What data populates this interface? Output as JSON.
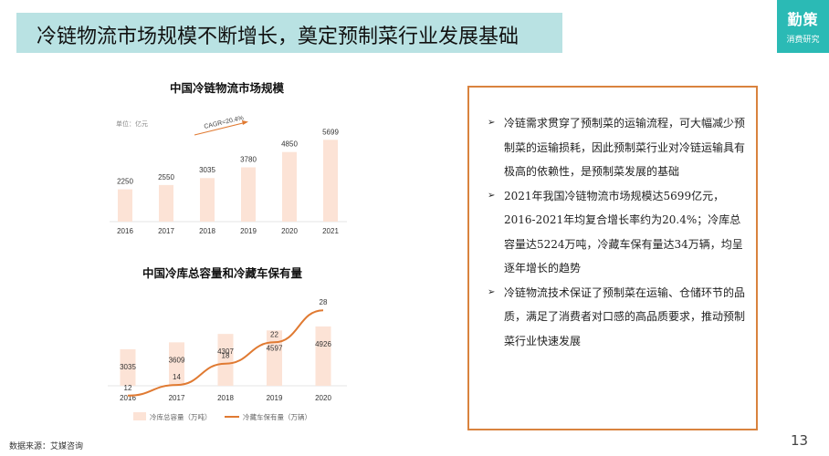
{
  "header": {
    "title": "冷链物流市场规模不断增长，奠定预制菜行业发展基础"
  },
  "brand": {
    "name": "勤策",
    "subtitle": "消费研究"
  },
  "chart_data": [
    {
      "type": "bar",
      "title": "中国冷链物流市场规模",
      "unit_label": "单位：亿元",
      "annotation": "CAGR=20.4%",
      "categories": [
        "2016",
        "2017",
        "2018",
        "2019",
        "2020",
        "2021"
      ],
      "values": [
        2250,
        2550,
        3035,
        3780,
        4850,
        5699
      ],
      "bar_color": "#fce3d6"
    },
    {
      "type": "bar+line",
      "title": "中国冷库总容量和冷藏车保有量",
      "categories": [
        "2016",
        "2017",
        "2018",
        "2019",
        "2020"
      ],
      "series": [
        {
          "name": "冷库总容量（万吨）",
          "type": "bar",
          "values": [
            3035,
            3609,
            4307,
            4597,
            4926
          ],
          "color": "#fce3d6"
        },
        {
          "name": "冷藏车保有量（万辆）",
          "type": "line",
          "values": [
            12,
            14,
            18,
            22,
            28
          ],
          "color": "#e07a32"
        }
      ]
    }
  ],
  "bullets": [
    "冷链需求贯穿了预制菜的运输流程，可大幅减少预制菜的运输损耗，因此预制菜行业对冷链运输具有极高的依赖性，是预制菜发展的基础",
    "2021年我国冷链物流市场规模达5699亿元，2016-2021年均复合增长率约为20.4%；冷库总容量达5224万吨，冷藏车保有量达34万辆，均呈逐年增长的趋势",
    "冷链物流技术保证了预制菜在运输、仓储环节的品质，满足了消费者对口感的高品质要求，推动预制菜行业快速发展"
  ],
  "bullet_icon": "arrow-bullet-icon",
  "page_number": "13",
  "source": "数据来源：艾媒咨询"
}
